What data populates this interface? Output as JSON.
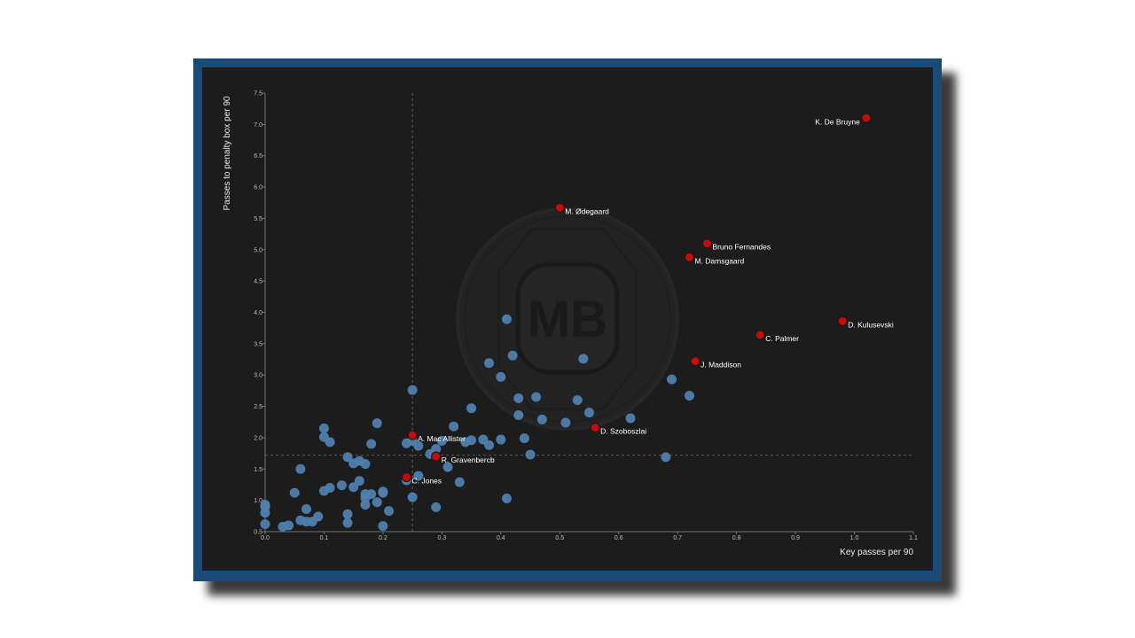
{
  "chart_data": {
    "type": "scatter",
    "xlabel": "Key passes per 90",
    "ylabel": "Passes to penalty box per 90",
    "xlim": [
      0.0,
      1.1
    ],
    "ylim": [
      0.5,
      7.5
    ],
    "x_ticks": [
      "0.0",
      "0.1",
      "0.2",
      "0.3",
      "0.4",
      "0.5",
      "0.6",
      "0.7",
      "0.8",
      "0.9",
      "1.0",
      "1.1"
    ],
    "y_ticks": [
      "0.5",
      "1.0",
      "1.5",
      "2.0",
      "2.5",
      "3.0",
      "3.5",
      "4.0",
      "4.5",
      "5.0",
      "5.5",
      "6.0",
      "6.5",
      "7.0",
      "7.5"
    ],
    "reference_lines": {
      "x": 0.25,
      "y": 1.72
    },
    "grid": false,
    "watermark": "MB",
    "colors": {
      "others": "#4f7fae",
      "highlighted": "#c80a0a",
      "background": "#1c1c1c",
      "frame": "#1a4a78"
    },
    "highlighted": [
      {
        "name": "K. De Bruyne",
        "x": 1.02,
        "y": 7.1,
        "label_pos": "left"
      },
      {
        "name": "M. Ødegaard",
        "x": 0.5,
        "y": 5.67,
        "label_pos": "right"
      },
      {
        "name": "Bruno Fernandes",
        "x": 0.75,
        "y": 5.1,
        "label_pos": "right"
      },
      {
        "name": "M. Damsgaard",
        "x": 0.72,
        "y": 4.88,
        "label_pos": "right"
      },
      {
        "name": "D. Kulusevski",
        "x": 0.98,
        "y": 3.86,
        "label_pos": "right"
      },
      {
        "name": "C. Palmer",
        "x": 0.84,
        "y": 3.64,
        "label_pos": "right"
      },
      {
        "name": "J. Maddison",
        "x": 0.73,
        "y": 3.22,
        "label_pos": "right"
      },
      {
        "name": "D. Szoboszlai",
        "x": 0.56,
        "y": 2.16,
        "label_pos": "right"
      },
      {
        "name": "A. Mac Allister",
        "x": 0.25,
        "y": 2.04,
        "label_pos": "right"
      },
      {
        "name": "R. Gravenbercb",
        "x": 0.29,
        "y": 1.7,
        "label_pos": "right"
      },
      {
        "name": "C. Jones",
        "x": 0.24,
        "y": 1.37,
        "label_pos": "right"
      }
    ],
    "others": [
      [
        0.0,
        0.93
      ],
      [
        0.0,
        0.89
      ],
      [
        0.0,
        0.8
      ],
      [
        0.0,
        0.62
      ],
      [
        0.03,
        0.58
      ],
      [
        0.04,
        0.6
      ],
      [
        0.05,
        1.12
      ],
      [
        0.06,
        1.5
      ],
      [
        0.06,
        0.68
      ],
      [
        0.07,
        0.66
      ],
      [
        0.07,
        0.86
      ],
      [
        0.08,
        0.66
      ],
      [
        0.09,
        0.74
      ],
      [
        0.1,
        2.15
      ],
      [
        0.1,
        2.01
      ],
      [
        0.1,
        1.15
      ],
      [
        0.11,
        1.93
      ],
      [
        0.11,
        1.2
      ],
      [
        0.13,
        1.24
      ],
      [
        0.14,
        1.69
      ],
      [
        0.14,
        0.78
      ],
      [
        0.14,
        0.64
      ],
      [
        0.15,
        1.59
      ],
      [
        0.15,
        1.21
      ],
      [
        0.16,
        1.63
      ],
      [
        0.16,
        1.31
      ],
      [
        0.17,
        1.58
      ],
      [
        0.17,
        1.1
      ],
      [
        0.17,
        1.04
      ],
      [
        0.17,
        0.93
      ],
      [
        0.18,
        1.9
      ],
      [
        0.18,
        1.1
      ],
      [
        0.19,
        2.23
      ],
      [
        0.19,
        0.97
      ],
      [
        0.2,
        1.14
      ],
      [
        0.2,
        1.12
      ],
      [
        0.2,
        0.59
      ],
      [
        0.21,
        0.83
      ],
      [
        0.24,
        1.91
      ],
      [
        0.24,
        1.32
      ],
      [
        0.25,
        2.76
      ],
      [
        0.25,
        1.95
      ],
      [
        0.25,
        1.05
      ],
      [
        0.26,
        1.87
      ],
      [
        0.26,
        1.39
      ],
      [
        0.28,
        1.74
      ],
      [
        0.29,
        1.82
      ],
      [
        0.29,
        0.89
      ],
      [
        0.3,
        1.95
      ],
      [
        0.31,
        1.53
      ],
      [
        0.32,
        2.18
      ],
      [
        0.33,
        1.29
      ],
      [
        0.34,
        1.93
      ],
      [
        0.35,
        1.96
      ],
      [
        0.35,
        2.47
      ],
      [
        0.37,
        1.97
      ],
      [
        0.38,
        3.19
      ],
      [
        0.38,
        1.88
      ],
      [
        0.4,
        2.97
      ],
      [
        0.4,
        1.97
      ],
      [
        0.41,
        3.89
      ],
      [
        0.41,
        1.03
      ],
      [
        0.42,
        3.31
      ],
      [
        0.43,
        2.63
      ],
      [
        0.43,
        2.36
      ],
      [
        0.44,
        1.99
      ],
      [
        0.45,
        1.73
      ],
      [
        0.46,
        2.65
      ],
      [
        0.47,
        2.29
      ],
      [
        0.51,
        2.24
      ],
      [
        0.53,
        2.6
      ],
      [
        0.54,
        3.26
      ],
      [
        0.55,
        2.4
      ],
      [
        0.62,
        2.31
      ],
      [
        0.68,
        1.69
      ],
      [
        0.69,
        2.93
      ],
      [
        0.72,
        2.67
      ]
    ]
  }
}
